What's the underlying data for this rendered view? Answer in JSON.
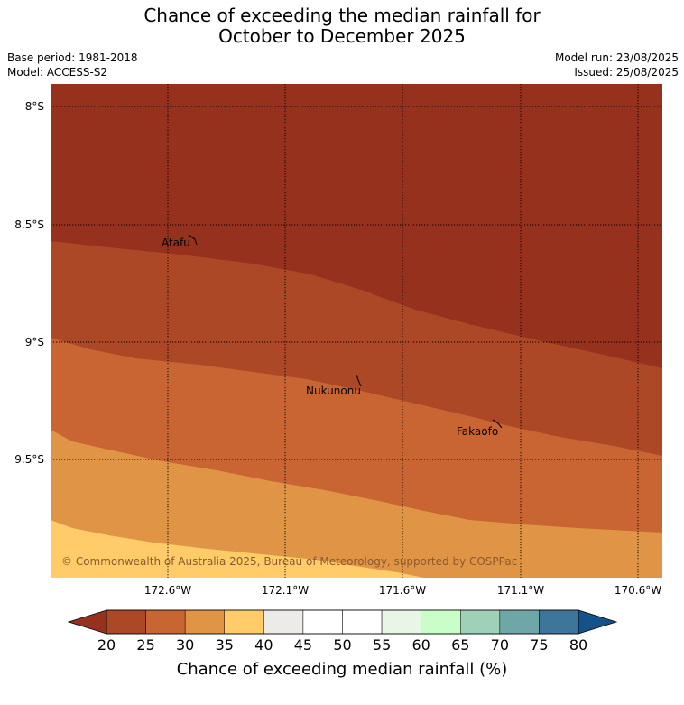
{
  "title": {
    "line1": "Chance of exceeding the median rainfall for",
    "line2": "October to December 2025"
  },
  "meta": {
    "base_period": "Base period: 1981-2018",
    "model": "Model: ACCESS-S2",
    "model_run": "Model run: 23/08/2025",
    "issued": "Issued: 25/08/2025"
  },
  "map": {
    "lat_labels": [
      "8°S",
      "8.5°S",
      "9°S",
      "9.5°S"
    ],
    "lon_labels": [
      "172.6°W",
      "172.1°W",
      "171.6°W",
      "171.1°W",
      "170.6°W"
    ],
    "places": [
      {
        "name": "Atafu"
      },
      {
        "name": "Nukunonu"
      },
      {
        "name": "Fakaofo"
      }
    ],
    "copyright": "© Commonwealth of Australia 2025, Bureau of Meteorology, supported by COSPPac",
    "bands": [
      {
        "range": "20-25",
        "color": "#96311e"
      },
      {
        "range": "25-30",
        "color": "#ad4826"
      },
      {
        "range": "30-35",
        "color": "#c96532"
      },
      {
        "range": "35-40",
        "color": "#e09546"
      },
      {
        "range": "40-45",
        "color": "#ffcc69"
      }
    ]
  },
  "colorbar": {
    "label": "Chance of exceeding median rainfall (%)",
    "ticks": [
      "20",
      "25",
      "30",
      "35",
      "40",
      "45",
      "50",
      "55",
      "60",
      "65",
      "70",
      "75",
      "80"
    ],
    "low_extend_color": "#96311e",
    "high_extend_color": "#16528a",
    "colors": [
      "#ad4826",
      "#c96532",
      "#e09546",
      "#ffcc69",
      "#ecebe8",
      "#ffffff",
      "#ffffff",
      "#e9f6e6",
      "#c9fec9",
      "#9fd0b8",
      "#6fa6a8",
      "#3d769a"
    ]
  }
}
